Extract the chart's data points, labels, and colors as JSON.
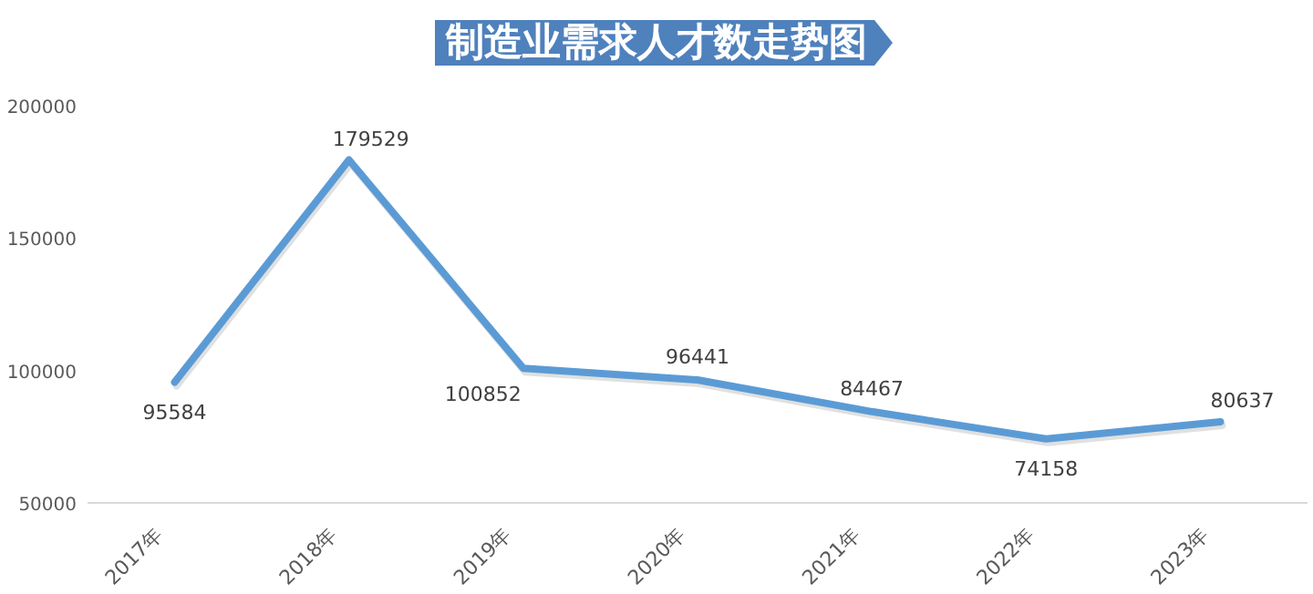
{
  "chart_data": {
    "type": "line",
    "title": "制造业需求人才数走势图",
    "categories": [
      "2017年",
      "2018年",
      "2019年",
      "2020年",
      "2021年",
      "2022年",
      "2023年"
    ],
    "series": [
      {
        "color": "#5b9bd5",
        "values": [
          95584,
          179529,
          100852,
          96441,
          84467,
          74158,
          80637
        ]
      }
    ],
    "ylim": [
      50000,
      200000
    ],
    "yticks": [
      50000,
      100000,
      150000,
      200000
    ],
    "grid": false,
    "data_labels": true,
    "marker": "none",
    "line_style": "solid"
  }
}
